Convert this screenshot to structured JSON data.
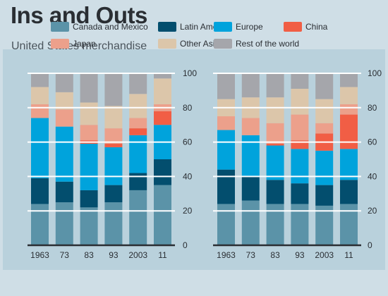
{
  "header": {
    "title": "Ins and Outs",
    "subtitle": "United States merchandise"
  },
  "chart_data": [
    {
      "type": "bar",
      "stacked": true,
      "categories": [
        "1963",
        "73",
        "83",
        "93",
        "2003",
        "11"
      ],
      "ylim": [
        0,
        100
      ],
      "yticks": [
        0,
        20,
        40,
        60,
        80,
        100
      ],
      "y_axis_position": "right",
      "grid": true,
      "legend_position": "top",
      "series": [
        {
          "name": "Canada and Mexico",
          "color": "#5b93a8",
          "values": [
            24,
            25,
            22,
            25,
            32,
            35
          ]
        },
        {
          "name": "Latin America",
          "color": "#034e6e",
          "values": [
            15,
            12,
            10,
            10,
            10,
            15
          ]
        },
        {
          "name": "Europe",
          "color": "#00a3dc",
          "values": [
            35,
            32,
            27,
            22,
            22,
            20
          ]
        },
        {
          "name": "China",
          "color": "#f15e45",
          "values": [
            0,
            0,
            2,
            2,
            4,
            8
          ]
        },
        {
          "name": "Japan",
          "color": "#eca08b",
          "values": [
            8,
            10,
            9,
            9,
            6,
            4
          ]
        },
        {
          "name": "Other Asia",
          "color": "#dcc6aa",
          "values": [
            10,
            10,
            13,
            13,
            14,
            15
          ]
        },
        {
          "name": "Rest of the world",
          "color": "#a5a6ab",
          "values": [
            8,
            11,
            17,
            19,
            12,
            3
          ]
        }
      ]
    },
    {
      "type": "bar",
      "stacked": true,
      "categories": [
        "1963",
        "73",
        "83",
        "93",
        "2003",
        "11"
      ],
      "ylim": [
        0,
        100
      ],
      "yticks": [
        0,
        20,
        40,
        60,
        80,
        100
      ],
      "y_axis_position": "right",
      "grid": true,
      "series": [
        {
          "name": "Canada and Mexico",
          "color": "#5b93a8",
          "values": [
            24,
            26,
            24,
            24,
            23,
            24
          ]
        },
        {
          "name": "Latin America",
          "color": "#034e6e",
          "values": [
            20,
            14,
            14,
            12,
            12,
            14
          ]
        },
        {
          "name": "Europe",
          "color": "#00a3dc",
          "values": [
            23,
            24,
            20,
            20,
            20,
            18
          ]
        },
        {
          "name": "China",
          "color": "#f15e45",
          "values": [
            0,
            0,
            1,
            5,
            10,
            20
          ]
        },
        {
          "name": "Japan",
          "color": "#eca08b",
          "values": [
            8,
            10,
            12,
            15,
            6,
            6
          ]
        },
        {
          "name": "Other Asia",
          "color": "#dcc6aa",
          "values": [
            10,
            12,
            15,
            15,
            14,
            10
          ]
        },
        {
          "name": "Rest of the world",
          "color": "#a5a6ab",
          "values": [
            15,
            14,
            14,
            9,
            15,
            8
          ]
        }
      ]
    }
  ]
}
